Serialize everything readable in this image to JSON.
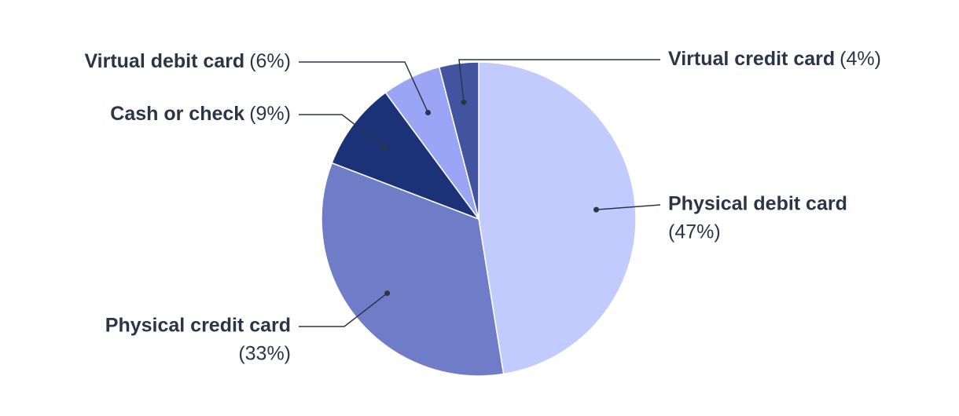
{
  "chart_data": {
    "type": "pie",
    "categories": [
      "Physical debit card",
      "Physical credit card",
      "Cash or check",
      "Virtual debit card",
      "Virtual credit card"
    ],
    "values": [
      47,
      33,
      9,
      6,
      4
    ],
    "value_labels": [
      "(47%)",
      "(33%)",
      "(9%)",
      "(6%)",
      "(4%)"
    ],
    "colors": [
      "#c2cbfd",
      "#6f7cc8",
      "#1b3278",
      "#9aa6f5",
      "#4254a0"
    ]
  }
}
